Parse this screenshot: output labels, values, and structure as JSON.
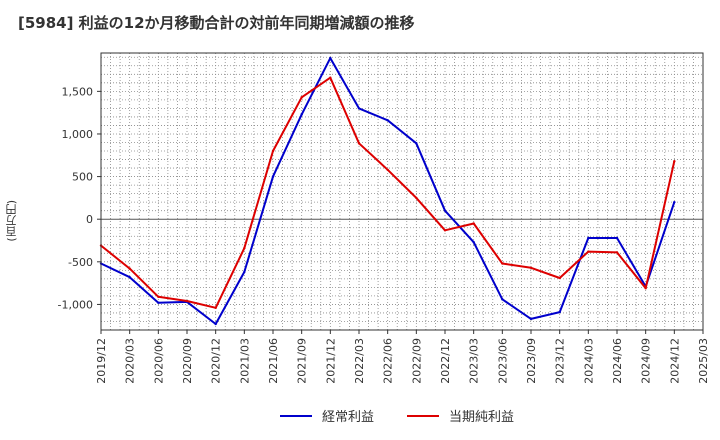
{
  "chart_data": {
    "type": "line",
    "title": "[5984]  利益の12か月移動合計の対前年同期増減額の推移",
    "ylabel": "(百万円)",
    "xlabel": "",
    "ylim": [
      -1300,
      1950
    ],
    "grid": true,
    "legend_position": "bottom",
    "y_ticks": [
      -1000,
      -500,
      0,
      500,
      1000,
      1500
    ],
    "y_tick_labels": [
      "-1,000",
      "-500",
      "0",
      "500",
      "1,000",
      "1,500"
    ],
    "categories": [
      "2019/12",
      "2020/03",
      "2020/06",
      "2020/09",
      "2020/12",
      "2021/03",
      "2021/06",
      "2021/09",
      "2021/12",
      "2022/03",
      "2022/06",
      "2022/09",
      "2022/12",
      "2023/03",
      "2023/06",
      "2023/09",
      "2023/12",
      "2024/03",
      "2024/06",
      "2024/09",
      "2024/12",
      "2025/03"
    ],
    "series": [
      {
        "name": "経常利益",
        "color": "#0000cc",
        "values": [
          -520,
          -680,
          -980,
          -970,
          -1230,
          -620,
          500,
          1230,
          1890,
          1300,
          1160,
          890,
          100,
          -270,
          -940,
          -1170,
          -1090,
          -220,
          -220,
          -790,
          200,
          null
        ]
      },
      {
        "name": "当期純利益",
        "color": "#dd0000",
        "values": [
          -310,
          -580,
          -910,
          -960,
          -1040,
          -340,
          800,
          1430,
          1660,
          890,
          580,
          250,
          -130,
          -50,
          -520,
          -570,
          -690,
          -380,
          -390,
          -810,
          680,
          null
        ]
      }
    ]
  }
}
